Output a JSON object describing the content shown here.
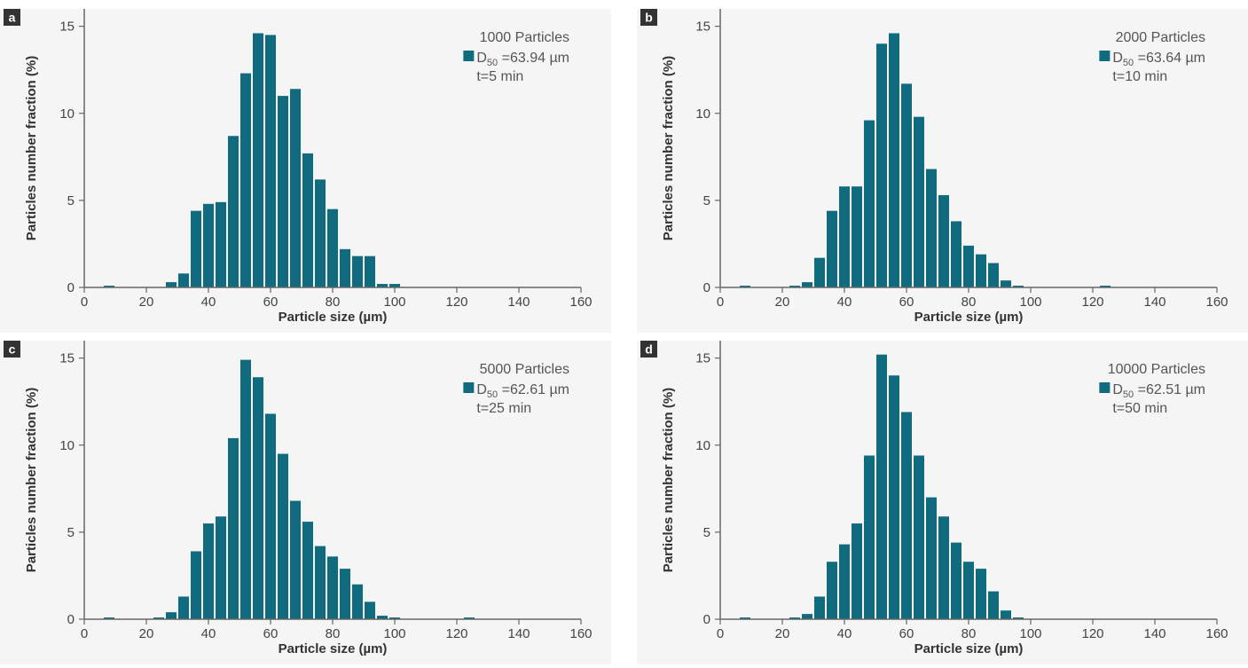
{
  "colors": {
    "bar": "#0f6b7d",
    "background": "#f5f5f5",
    "axis": "#666666",
    "label_box": "#333333"
  },
  "chart_data": [
    {
      "panel": "a",
      "type": "bar",
      "legend": {
        "particles": "1000 Particles",
        "d50_base": "D",
        "d50_sub": "50",
        "d50_value": " =63.94 µm",
        "time": "t=5 min"
      },
      "xlabel": "Particle size (µm)",
      "ylabel": "Particles number fraction (%)",
      "xlim": [
        0,
        160
      ],
      "ylim": [
        0,
        16
      ],
      "xticks": [
        0,
        20,
        40,
        60,
        80,
        100,
        120,
        140,
        160
      ],
      "yticks": [
        0,
        5,
        10,
        15
      ],
      "bin_width": 4,
      "x": [
        8,
        28,
        32,
        36,
        40,
        44,
        48,
        52,
        56,
        60,
        64,
        68,
        72,
        76,
        80,
        84,
        88,
        92,
        96,
        100,
        104,
        108,
        112
      ],
      "values": [
        0.1,
        0.3,
        0.8,
        4.4,
        4.8,
        4.9,
        8.7,
        12.3,
        14.6,
        14.5,
        11.0,
        11.4,
        7.7,
        6.2,
        4.5,
        2.2,
        1.8,
        1.8,
        0.2,
        0.2,
        0,
        0,
        0
      ]
    },
    {
      "panel": "b",
      "type": "bar",
      "legend": {
        "particles": "2000 Particles",
        "d50_base": "D",
        "d50_sub": "50",
        "d50_value": " =63.64 µm",
        "time": "t=10 min"
      },
      "xlabel": "Particle size (µm)",
      "ylabel": "Particles number fraction (%)",
      "xlim": [
        0,
        160
      ],
      "ylim": [
        0,
        16
      ],
      "xticks": [
        0,
        20,
        40,
        60,
        80,
        100,
        120,
        140,
        160
      ],
      "yticks": [
        0,
        5,
        10,
        15
      ],
      "bin_width": 4,
      "x": [
        8,
        24,
        28,
        32,
        36,
        40,
        44,
        48,
        52,
        56,
        60,
        64,
        68,
        72,
        76,
        80,
        84,
        88,
        92,
        96,
        100,
        104,
        108,
        112,
        124
      ],
      "values": [
        0.1,
        0.1,
        0.3,
        1.7,
        4.4,
        5.8,
        5.8,
        9.6,
        14.0,
        14.6,
        11.7,
        9.8,
        6.8,
        5.3,
        3.8,
        2.4,
        1.9,
        1.4,
        0.4,
        0.1,
        0,
        0,
        0,
        0,
        0.1
      ]
    },
    {
      "panel": "c",
      "type": "bar",
      "legend": {
        "particles": "5000 Particles",
        "d50_base": "D",
        "d50_sub": "50",
        "d50_value": " =62.61 µm",
        "time": "t=25 min"
      },
      "xlabel": "Particle size (µm)",
      "ylabel": "Particles number fraction (%)",
      "xlim": [
        0,
        160
      ],
      "ylim": [
        0,
        16
      ],
      "xticks": [
        0,
        20,
        40,
        60,
        80,
        100,
        120,
        140,
        160
      ],
      "yticks": [
        0,
        5,
        10,
        15
      ],
      "bin_width": 4,
      "x": [
        8,
        24,
        28,
        32,
        36,
        40,
        44,
        48,
        52,
        56,
        60,
        64,
        68,
        72,
        76,
        80,
        84,
        88,
        92,
        96,
        100,
        104,
        108,
        124
      ],
      "values": [
        0.1,
        0.1,
        0.4,
        1.3,
        3.9,
        5.5,
        5.9,
        10.4,
        14.9,
        13.9,
        11.8,
        9.5,
        6.8,
        5.6,
        4.2,
        3.6,
        2.9,
        2.0,
        1.0,
        0.2,
        0.1,
        0,
        0,
        0.1
      ]
    },
    {
      "panel": "d",
      "type": "bar",
      "legend": {
        "particles": "10000 Particles",
        "d50_base": "D",
        "d50_sub": "50",
        "d50_value": " =62.51 µm",
        "time": "t=50 min"
      },
      "xlabel": "Particle size (µm)",
      "ylabel": "Particles number fraction (%)",
      "xlim": [
        0,
        160
      ],
      "ylim": [
        0,
        16
      ],
      "xticks": [
        0,
        20,
        40,
        60,
        80,
        100,
        120,
        140,
        160
      ],
      "yticks": [
        0,
        5,
        10,
        15
      ],
      "bin_width": 4,
      "x": [
        8,
        24,
        28,
        32,
        36,
        40,
        44,
        48,
        52,
        56,
        60,
        64,
        68,
        72,
        76,
        80,
        84,
        88,
        92,
        96,
        100,
        104,
        108,
        112
      ],
      "values": [
        0.1,
        0.1,
        0.3,
        1.3,
        3.3,
        4.3,
        5.5,
        9.4,
        15.2,
        14.0,
        11.9,
        9.4,
        7.0,
        5.9,
        4.4,
        3.3,
        2.9,
        1.6,
        0.5,
        0.1,
        0,
        0,
        0,
        0
      ]
    }
  ]
}
